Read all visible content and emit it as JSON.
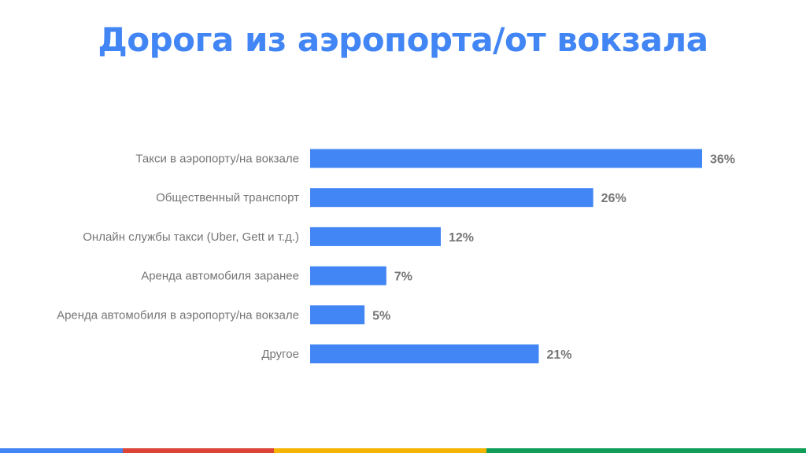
{
  "slide": {
    "title": "Дорога из аэропорта/от вокзала"
  },
  "colors": {
    "title": "#4285f4",
    "bar": "#4285f4",
    "label": "#757575",
    "value": "#757575",
    "stripe_blue": "#4285f4",
    "stripe_red": "#db4437",
    "stripe_yellow": "#f4b400",
    "stripe_green": "#0f9d58"
  },
  "chart_data": {
    "type": "bar",
    "orientation": "horizontal",
    "title": "Дорога из аэропорта/от вокзала",
    "xlabel": "",
    "ylabel": "",
    "xlim": [
      0,
      36
    ],
    "grid": false,
    "legend": "none",
    "categories": [
      "Такси в аэропорту/на вокзале",
      "Общественный транспорт",
      "Онлайн службы такси (Uber, Gett и т.д.)",
      "Аренда автомобиля заранее",
      "Аренда автомобиля в аэропорту/на вокзале",
      "Другое"
    ],
    "values": [
      36,
      26,
      12,
      7,
      5,
      21
    ],
    "value_labels": [
      "36%",
      "26%",
      "12%",
      "7%",
      "5%",
      "21%"
    ]
  }
}
